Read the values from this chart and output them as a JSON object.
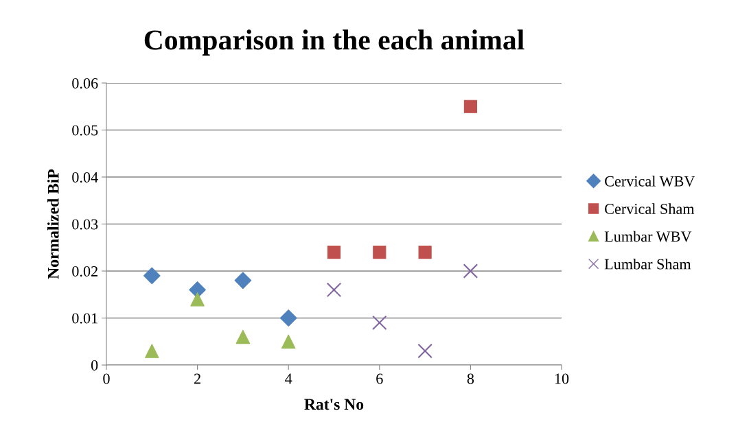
{
  "chart_data": {
    "type": "scatter",
    "title": "Comparison in the each animal",
    "xlabel": "Rat's No",
    "ylabel": "Normalized BiP",
    "xlim": [
      0,
      10
    ],
    "xticks": [
      0,
      2,
      4,
      6,
      8,
      10
    ],
    "ylim": [
      0,
      0.06
    ],
    "yticks": [
      0,
      0.01,
      0.02,
      0.03,
      0.04,
      0.05,
      0.06
    ],
    "grid": "y",
    "legend": "right",
    "series": [
      {
        "name": "Cervical WBV",
        "color": "#4f81bd",
        "marker": "diamond",
        "x": [
          1,
          2,
          3,
          4
        ],
        "values": [
          0.019,
          0.016,
          0.018,
          0.01
        ]
      },
      {
        "name": "Cervical Sham",
        "color": "#c0504d",
        "marker": "square",
        "x": [
          5,
          6,
          7,
          8
        ],
        "values": [
          0.024,
          0.024,
          0.024,
          0.055
        ]
      },
      {
        "name": "Lumbar WBV",
        "color": "#9bbb59",
        "marker": "triangle",
        "x": [
          1,
          2,
          3,
          4
        ],
        "values": [
          0.003,
          0.014,
          0.006,
          0.005
        ]
      },
      {
        "name": "Lumbar Sham",
        "color": "#8064a2",
        "marker": "cross",
        "x": [
          5,
          6,
          7,
          8
        ],
        "values": [
          0.016,
          0.009,
          0.003,
          0.02
        ]
      }
    ]
  }
}
